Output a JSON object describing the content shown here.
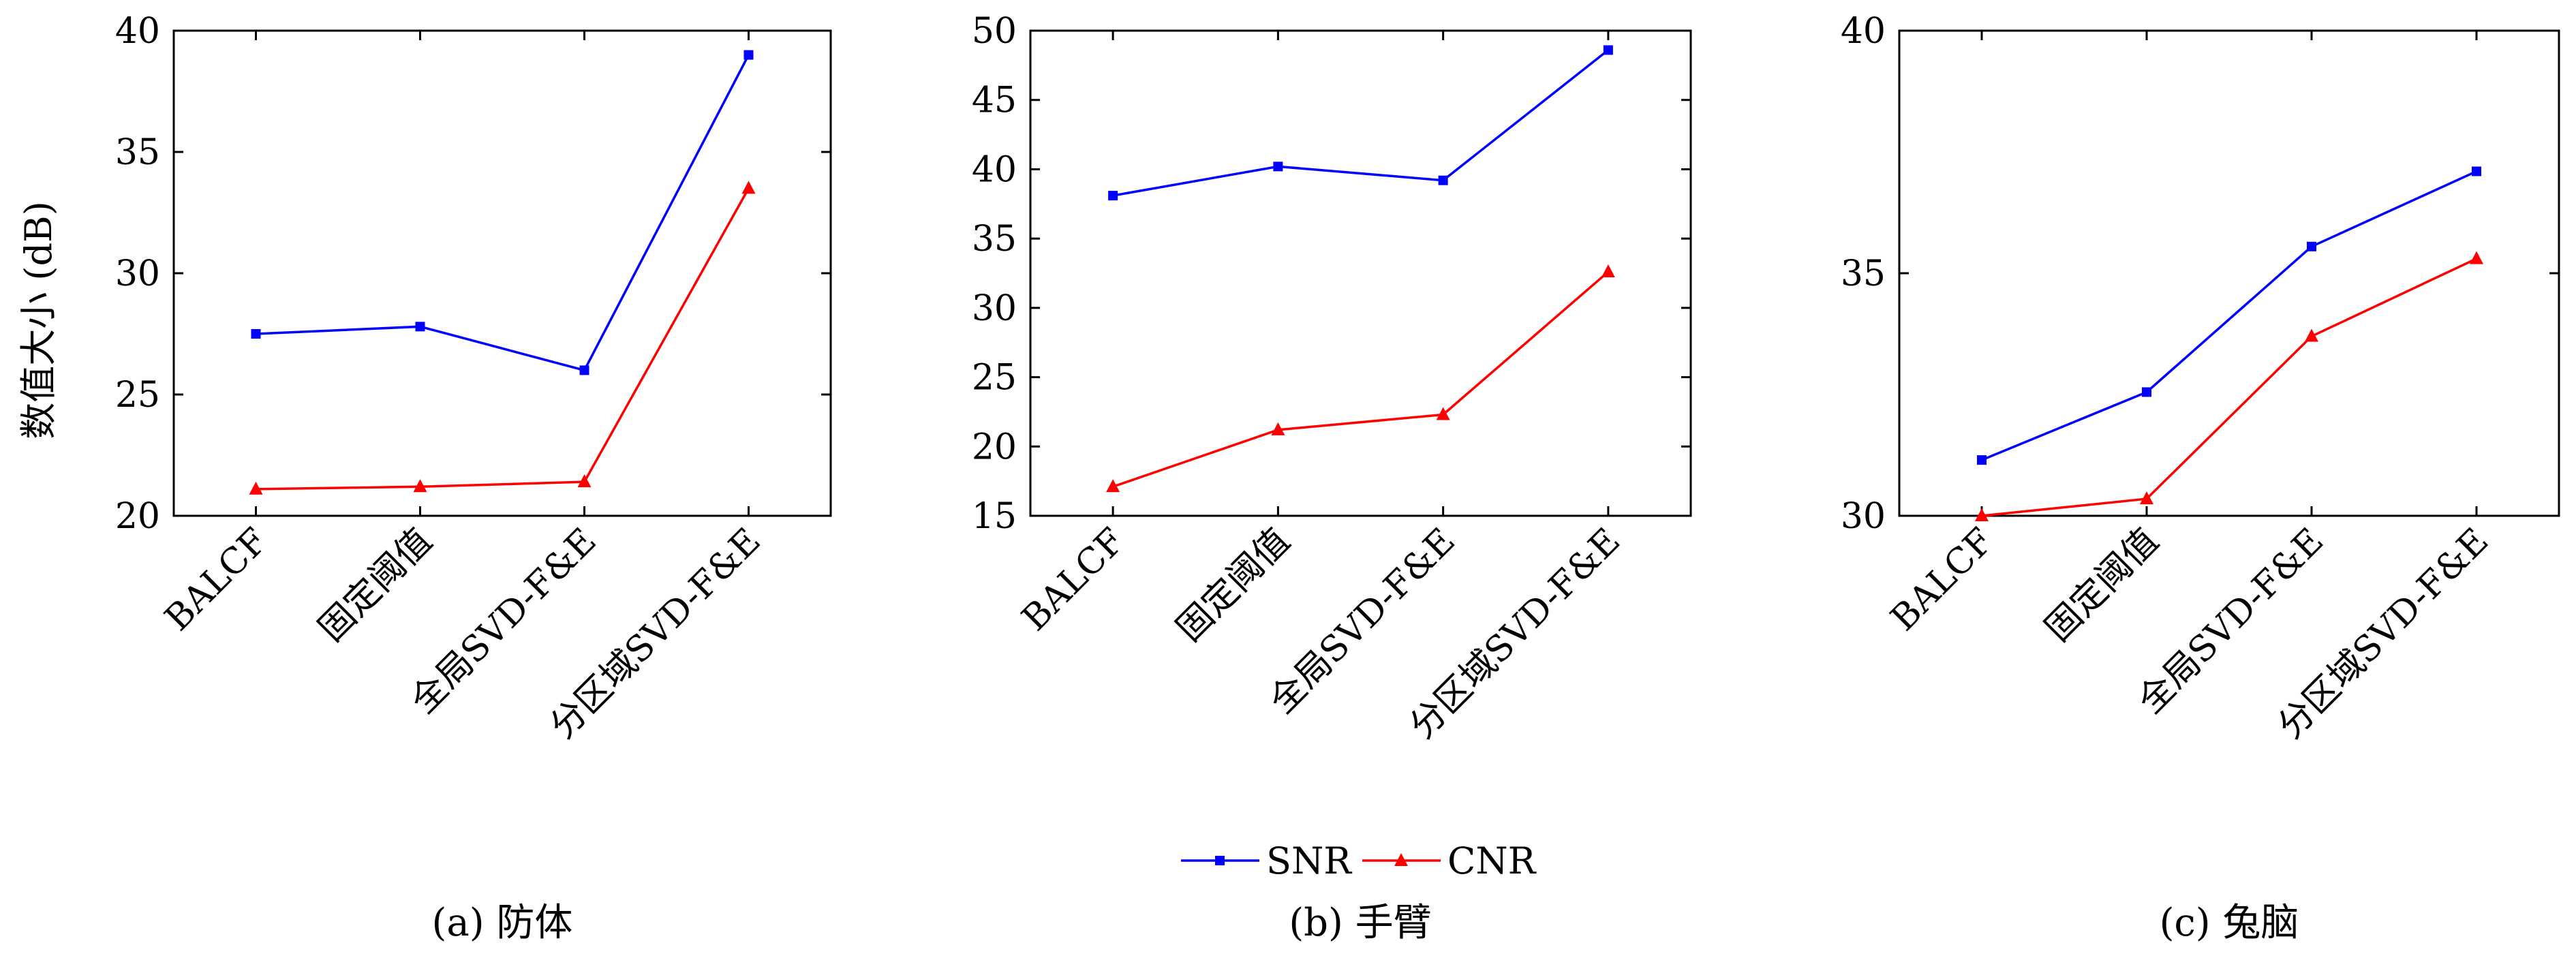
{
  "ylabel": "数值大小 (dB)",
  "categories": [
    "BALCF",
    "固定阈值",
    "全局SVD-F&E",
    "分区域SVD-F&E"
  ],
  "legend": [
    {
      "name": "SNR",
      "color": "#0000ff",
      "marker": "square"
    },
    {
      "name": "CNR",
      "color": "#ff0000",
      "marker": "triangle"
    }
  ],
  "chart_data": [
    {
      "type": "line",
      "title": "(a) 防体",
      "categories": [
        "BALCF",
        "固定阈值",
        "全局SVD-F&E",
        "分区域SVD-F&E"
      ],
      "xlabel": "",
      "ylabel": "数值大小 (dB)",
      "ylim": [
        20,
        40
      ],
      "yticks": [
        20,
        25,
        30,
        35,
        40
      ],
      "series": [
        {
          "name": "SNR",
          "color": "#0000ff",
          "values": [
            27.5,
            27.8,
            26.0,
            39.0
          ]
        },
        {
          "name": "CNR",
          "color": "#ff0000",
          "values": [
            21.1,
            21.2,
            21.4,
            33.5
          ]
        }
      ]
    },
    {
      "type": "line",
      "title": "(b) 手臂",
      "categories": [
        "BALCF",
        "固定阈值",
        "全局SVD-F&E",
        "分区域SVD-F&E"
      ],
      "xlabel": "",
      "ylabel": "",
      "ylim": [
        15,
        50
      ],
      "yticks": [
        15,
        20,
        25,
        30,
        35,
        40,
        45,
        50
      ],
      "series": [
        {
          "name": "SNR",
          "color": "#0000ff",
          "values": [
            38.1,
            40.2,
            39.2,
            48.6
          ]
        },
        {
          "name": "CNR",
          "color": "#ff0000",
          "values": [
            17.1,
            21.2,
            22.3,
            32.6
          ]
        }
      ]
    },
    {
      "type": "line",
      "title": "(c) 兔脑",
      "categories": [
        "BALCF",
        "固定阈值",
        "全局SVD-F&E",
        "分区域SVD-F&E"
      ],
      "xlabel": "",
      "ylabel": "",
      "ylim": [
        30,
        40
      ],
      "yticks": [
        30,
        35,
        40
      ],
      "series": [
        {
          "name": "SNR",
          "color": "#0000ff",
          "values": [
            31.15,
            32.55,
            35.55,
            37.1
          ]
        },
        {
          "name": "CNR",
          "color": "#ff0000",
          "values": [
            30.0,
            30.35,
            33.7,
            35.3
          ]
        }
      ]
    }
  ]
}
